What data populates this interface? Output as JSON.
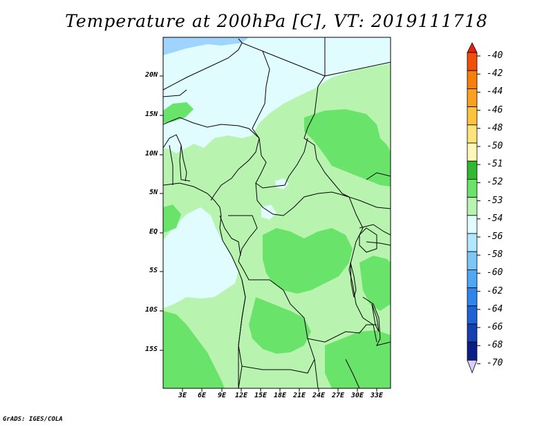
{
  "title": "Temperature at 200hPa [C], VT: 2019111718",
  "credit": "GrADS: IGES/COLA",
  "lat_labels": [
    "20N",
    "15N",
    "10N",
    "5N",
    "EQ",
    "5S",
    "10S",
    "15S"
  ],
  "lon_labels": [
    "3E",
    "6E",
    "9E",
    "12E",
    "15E",
    "18E",
    "21E",
    "24E",
    "27E",
    "30E",
    "33E"
  ],
  "colorbar": [
    {
      "label": "-40",
      "color": "#e8200c"
    },
    {
      "label": "-42",
      "color": "#f0500a"
    },
    {
      "label": "-44",
      "color": "#f77f0c"
    },
    {
      "label": "-46",
      "color": "#f9a020"
    },
    {
      "label": "-48",
      "color": "#fbc33e"
    },
    {
      "label": "-50",
      "color": "#fde47a"
    },
    {
      "label": "-51",
      "color": "#fdf8b8"
    },
    {
      "label": "-52",
      "color": "#33b833"
    },
    {
      "label": "-53",
      "color": "#6ae36a"
    },
    {
      "label": "-54",
      "color": "#b8f4b0"
    },
    {
      "label": "-56",
      "color": "#e0fcff"
    },
    {
      "label": "-58",
      "color": "#b0e8ff"
    },
    {
      "label": "-60",
      "color": "#7cc6f8"
    },
    {
      "label": "-62",
      "color": "#52a6f4"
    },
    {
      "label": "-64",
      "color": "#2e86ec"
    },
    {
      "label": "-66",
      "color": "#1e62d6"
    },
    {
      "label": "-68",
      "color": "#1440b0"
    },
    {
      "label": "-70",
      "color": "#0a1e88"
    }
  ],
  "colorbar_bottom_color": "#d8d0f8",
  "map_colors": {
    "light_blue": "#9fd4ff",
    "pale_cyan": "#e0fcff",
    "pale_green": "#b8f4b0",
    "mid_green": "#6ae36a",
    "border": "#000000"
  }
}
